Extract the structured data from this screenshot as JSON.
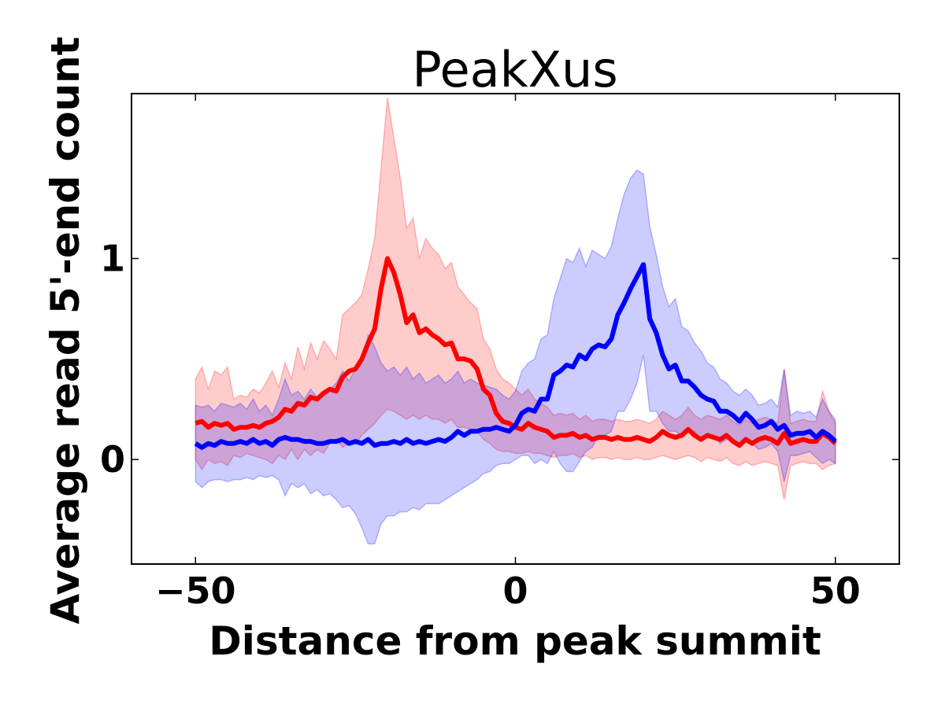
{
  "chart_data": {
    "type": "line",
    "title": "PeakXus",
    "xlabel": "Distance from peak summit",
    "ylabel": "Average read 5'-end count",
    "xlim": [
      -60,
      60
    ],
    "ylim": [
      -0.52,
      1.82
    ],
    "xticks": [
      -50,
      0,
      50
    ],
    "xtick_labels": [
      "−50",
      "0",
      "50"
    ],
    "yticks": [
      0,
      1
    ],
    "ytick_labels": [
      "0",
      "1"
    ],
    "grid": false,
    "legend": "none",
    "x": [
      -50,
      -49,
      -48,
      -47,
      -46,
      -45,
      -44,
      -43,
      -42,
      -41,
      -40,
      -39,
      -38,
      -37,
      -36,
      -35,
      -34,
      -33,
      -32,
      -31,
      -30,
      -29,
      -28,
      -27,
      -26,
      -25,
      -24,
      -23,
      -22,
      -21,
      -20,
      -19,
      -18,
      -17,
      -16,
      -15,
      -14,
      -13,
      -12,
      -11,
      -10,
      -9,
      -8,
      -7,
      -6,
      -5,
      -4,
      -3,
      -2,
      -1,
      0,
      1,
      2,
      3,
      4,
      5,
      6,
      7,
      8,
      9,
      10,
      11,
      12,
      13,
      14,
      15,
      16,
      17,
      18,
      19,
      20,
      21,
      22,
      23,
      24,
      25,
      26,
      27,
      28,
      29,
      30,
      31,
      32,
      33,
      34,
      35,
      36,
      37,
      38,
      39,
      40,
      41,
      42,
      43,
      44,
      45,
      46,
      47,
      48,
      49,
      50
    ],
    "series": [
      {
        "color": "#ff0000",
        "band_color": "#ff0000",
        "mean": [
          0.18,
          0.19,
          0.16,
          0.18,
          0.17,
          0.18,
          0.15,
          0.16,
          0.16,
          0.17,
          0.16,
          0.18,
          0.19,
          0.21,
          0.25,
          0.24,
          0.28,
          0.27,
          0.31,
          0.3,
          0.33,
          0.35,
          0.34,
          0.41,
          0.44,
          0.45,
          0.5,
          0.58,
          0.65,
          0.85,
          1.0,
          0.93,
          0.82,
          0.68,
          0.72,
          0.63,
          0.65,
          0.62,
          0.6,
          0.57,
          0.58,
          0.5,
          0.5,
          0.49,
          0.45,
          0.35,
          0.32,
          0.23,
          0.19,
          0.18,
          0.16,
          0.15,
          0.18,
          0.16,
          0.15,
          0.14,
          0.11,
          0.12,
          0.12,
          0.13,
          0.11,
          0.12,
          0.1,
          0.11,
          0.11,
          0.1,
          0.11,
          0.1,
          0.1,
          0.11,
          0.1,
          0.09,
          0.11,
          0.14,
          0.12,
          0.11,
          0.12,
          0.15,
          0.12,
          0.1,
          0.12,
          0.11,
          0.1,
          0.12,
          0.09,
          0.07,
          0.1,
          0.08,
          0.1,
          0.11,
          0.1,
          0.08,
          0.13,
          0.08,
          0.09,
          0.1,
          0.09,
          0.09,
          0.13,
          0.11,
          0.08
        ],
        "upper": [
          0.4,
          0.46,
          0.35,
          0.44,
          0.42,
          0.46,
          0.3,
          0.32,
          0.31,
          0.35,
          0.33,
          0.38,
          0.44,
          0.36,
          0.48,
          0.4,
          0.56,
          0.45,
          0.58,
          0.5,
          0.59,
          0.55,
          0.5,
          0.72,
          0.75,
          0.78,
          0.82,
          0.95,
          1.1,
          1.45,
          1.8,
          1.6,
          1.4,
          1.15,
          1.2,
          1.0,
          1.1,
          1.05,
          1.02,
          0.95,
          0.98,
          0.86,
          0.82,
          0.78,
          0.75,
          0.6,
          0.55,
          0.45,
          0.4,
          0.38,
          0.35,
          0.32,
          0.35,
          0.3,
          0.28,
          0.26,
          0.22,
          0.23,
          0.22,
          0.23,
          0.2,
          0.22,
          0.19,
          0.2,
          0.2,
          0.19,
          0.2,
          0.19,
          0.19,
          0.2,
          0.19,
          0.18,
          0.2,
          0.24,
          0.22,
          0.2,
          0.22,
          0.26,
          0.22,
          0.2,
          0.22,
          0.21,
          0.2,
          0.22,
          0.19,
          0.17,
          0.2,
          0.18,
          0.2,
          0.21,
          0.2,
          0.18,
          0.45,
          0.18,
          0.19,
          0.2,
          0.19,
          0.19,
          0.34,
          0.24,
          0.18
        ],
        "lower": [
          0.0,
          -0.05,
          0.0,
          -0.02,
          -0.01,
          -0.03,
          0.02,
          0.01,
          0.03,
          0.02,
          0.01,
          0.0,
          -0.02,
          0.02,
          0.0,
          0.05,
          0.0,
          0.05,
          0.02,
          0.05,
          0.03,
          0.08,
          0.1,
          0.06,
          0.08,
          0.08,
          0.12,
          0.15,
          0.18,
          0.22,
          0.25,
          0.24,
          0.22,
          0.2,
          0.22,
          0.2,
          0.22,
          0.2,
          0.2,
          0.18,
          0.2,
          0.16,
          0.16,
          0.15,
          0.14,
          0.1,
          0.08,
          0.05,
          0.04,
          0.04,
          0.03,
          0.03,
          0.04,
          0.03,
          0.03,
          0.02,
          0.01,
          0.02,
          0.02,
          0.03,
          0.01,
          0.02,
          0.0,
          0.01,
          0.01,
          0.0,
          0.01,
          0.0,
          0.0,
          0.01,
          0.0,
          0.0,
          0.01,
          0.02,
          0.01,
          0.0,
          0.01,
          0.02,
          0.01,
          -0.01,
          0.01,
          0.0,
          -0.01,
          0.01,
          -0.02,
          -0.03,
          -0.01,
          -0.03,
          -0.02,
          -0.01,
          -0.02,
          -0.03,
          -0.2,
          -0.03,
          -0.02,
          -0.01,
          -0.02,
          -0.02,
          -0.05,
          -0.03,
          -0.02
        ]
      },
      {
        "color": "#0000ff",
        "band_color": "#0000ff",
        "mean": [
          0.08,
          0.06,
          0.08,
          0.07,
          0.09,
          0.08,
          0.08,
          0.09,
          0.08,
          0.1,
          0.08,
          0.09,
          0.07,
          0.1,
          0.11,
          0.1,
          0.1,
          0.09,
          0.09,
          0.08,
          0.08,
          0.09,
          0.09,
          0.1,
          0.08,
          0.09,
          0.08,
          0.1,
          0.07,
          0.08,
          0.08,
          0.09,
          0.08,
          0.1,
          0.08,
          0.09,
          0.08,
          0.09,
          0.1,
          0.09,
          0.11,
          0.14,
          0.12,
          0.14,
          0.14,
          0.15,
          0.15,
          0.16,
          0.15,
          0.14,
          0.17,
          0.23,
          0.25,
          0.24,
          0.3,
          0.3,
          0.42,
          0.44,
          0.47,
          0.46,
          0.52,
          0.5,
          0.55,
          0.57,
          0.56,
          0.6,
          0.72,
          0.78,
          0.85,
          0.91,
          0.97,
          0.7,
          0.63,
          0.52,
          0.45,
          0.47,
          0.39,
          0.39,
          0.36,
          0.32,
          0.3,
          0.29,
          0.24,
          0.24,
          0.22,
          0.19,
          0.23,
          0.2,
          0.16,
          0.17,
          0.19,
          0.15,
          0.17,
          0.12,
          0.13,
          0.13,
          0.14,
          0.11,
          0.14,
          0.12,
          0.09
        ],
        "upper": [
          0.27,
          0.26,
          0.27,
          0.24,
          0.28,
          0.27,
          0.26,
          0.28,
          0.25,
          0.3,
          0.24,
          0.27,
          0.22,
          0.3,
          0.4,
          0.32,
          0.34,
          0.3,
          0.35,
          0.31,
          0.34,
          0.35,
          0.38,
          0.44,
          0.39,
          0.45,
          0.5,
          0.62,
          0.56,
          0.48,
          0.44,
          0.46,
          0.42,
          0.46,
          0.4,
          0.43,
          0.38,
          0.4,
          0.42,
          0.38,
          0.4,
          0.44,
          0.38,
          0.4,
          0.38,
          0.37,
          0.36,
          0.35,
          0.32,
          0.3,
          0.34,
          0.44,
          0.48,
          0.5,
          0.6,
          0.62,
          0.8,
          0.9,
          1.0,
          0.98,
          1.05,
          0.96,
          1.04,
          1.02,
          1.0,
          1.06,
          1.2,
          1.32,
          1.4,
          1.44,
          1.42,
          1.16,
          1.02,
          0.86,
          0.76,
          0.8,
          0.66,
          0.64,
          0.58,
          0.54,
          0.48,
          0.46,
          0.4,
          0.38,
          0.34,
          0.32,
          0.35,
          0.32,
          0.27,
          0.28,
          0.3,
          0.26,
          0.45,
          0.22,
          0.24,
          0.23,
          0.24,
          0.21,
          0.3,
          0.24,
          0.2
        ],
        "lower": [
          -0.11,
          -0.14,
          -0.11,
          -0.1,
          -0.1,
          -0.11,
          -0.1,
          -0.1,
          -0.09,
          -0.1,
          -0.08,
          -0.09,
          -0.08,
          -0.1,
          -0.18,
          -0.12,
          -0.14,
          -0.12,
          -0.17,
          -0.15,
          -0.18,
          -0.17,
          -0.2,
          -0.24,
          -0.23,
          -0.27,
          -0.34,
          -0.42,
          -0.42,
          -0.32,
          -0.28,
          -0.28,
          -0.26,
          -0.26,
          -0.24,
          -0.25,
          -0.22,
          -0.22,
          -0.22,
          -0.2,
          -0.18,
          -0.16,
          -0.14,
          -0.12,
          -0.1,
          -0.07,
          -0.06,
          -0.03,
          -0.02,
          -0.02,
          0.0,
          0.02,
          0.02,
          -0.02,
          0.0,
          -0.02,
          0.04,
          -0.02,
          -0.06,
          -0.06,
          -0.01,
          0.04,
          0.06,
          0.12,
          0.12,
          0.14,
          0.24,
          0.24,
          0.3,
          0.38,
          0.52,
          0.24,
          0.24,
          0.18,
          0.14,
          0.14,
          0.12,
          0.14,
          0.14,
          0.1,
          0.12,
          0.12,
          0.08,
          0.1,
          0.1,
          0.06,
          0.11,
          0.08,
          0.05,
          0.06,
          0.08,
          0.04,
          -0.11,
          0.02,
          0.02,
          0.03,
          0.04,
          0.01,
          -0.02,
          0.0,
          -0.02
        ]
      }
    ]
  }
}
